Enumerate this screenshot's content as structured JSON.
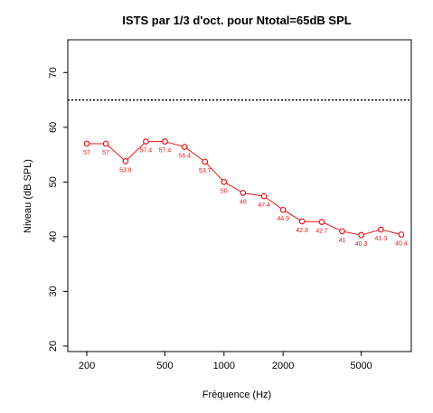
{
  "chart_data": {
    "type": "line",
    "title": "ISTS par 1/3 d'oct. pour Ntotal=65dB SPL",
    "xlabel": "Fréquence (Hz)",
    "ylabel": "Niveau (dB SPL)",
    "x_scale": "log",
    "xlim": [
      160,
      9000
    ],
    "ylim": [
      19,
      76
    ],
    "x_ticks": [
      200,
      500,
      1000,
      2000,
      5000
    ],
    "x_tick_labels": [
      "200",
      "500",
      "1000",
      "2000",
      "5000"
    ],
    "y_ticks": [
      20,
      30,
      40,
      50,
      60,
      70
    ],
    "y_tick_labels": [
      "20",
      "30",
      "40",
      "50",
      "60",
      "70"
    ],
    "grid": false,
    "legend": false,
    "reference_line": {
      "y": 65,
      "style": "dotted",
      "color": "#000000"
    },
    "series": [
      {
        "color": "#e41a1c",
        "marker": "open-circle",
        "x": [
          200,
          250,
          315,
          400,
          500,
          630,
          800,
          1000,
          1250,
          1600,
          2000,
          2500,
          3150,
          4000,
          5000,
          6300,
          8000
        ],
        "y": [
          57,
          57,
          53.8,
          57.4,
          57.4,
          56.4,
          53.7,
          50,
          48,
          47.4,
          44.9,
          42.8,
          42.7,
          41,
          40.3,
          41.3,
          40.4
        ],
        "labels": [
          "57",
          "57",
          "53.8",
          "57.4",
          "57.4",
          "56.4",
          "53.7",
          "50",
          "48",
          "47.4",
          "44.9",
          "42.8",
          "42.7",
          "41",
          "40.3",
          "41.3",
          "40.4"
        ]
      }
    ]
  }
}
